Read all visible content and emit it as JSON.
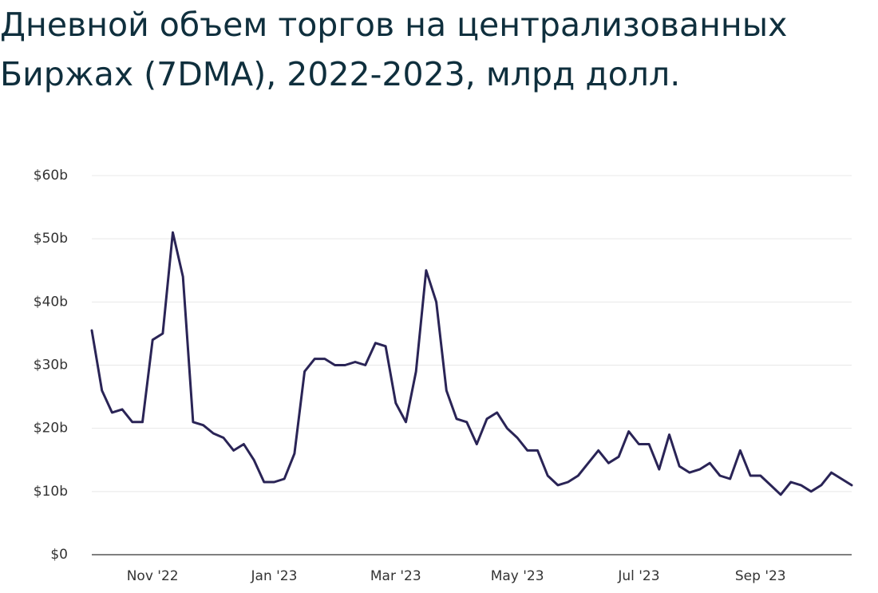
{
  "chart_data": {
    "type": "line",
    "title": "Дневной объем торгов на централизованных Биржах (7DMA), 2022-2023, млрд долл.",
    "categories": [
      null,
      null,
      null,
      null,
      null,
      null,
      "Nov '22",
      null,
      null,
      null,
      null,
      null,
      null,
      null,
      null,
      null,
      null,
      null,
      "Jan '23",
      null,
      null,
      null,
      null,
      null,
      null,
      null,
      null,
      null,
      null,
      null,
      "Mar '23",
      null,
      null,
      null,
      null,
      null,
      null,
      null,
      null,
      null,
      null,
      null,
      "May '23",
      null,
      null,
      null,
      null,
      null,
      null,
      null,
      null,
      null,
      null,
      null,
      "Jul '23",
      null,
      null,
      null,
      null,
      null,
      null,
      null,
      null,
      null,
      null,
      null,
      "Sep '23",
      null,
      null,
      null,
      null,
      null,
      null,
      null,
      null,
      null
    ],
    "values": [
      35.5,
      26,
      22.5,
      23,
      21,
      21,
      34,
      35,
      51,
      44,
      21,
      20.5,
      19.2,
      18.5,
      16.5,
      17.5,
      15,
      11.5,
      11.5,
      12,
      16,
      29,
      31,
      31,
      30,
      30,
      30.5,
      30,
      33.5,
      33,
      24,
      21,
      29,
      45,
      40,
      26,
      21.5,
      21,
      17.5,
      21.5,
      22.5,
      20,
      18.5,
      16.5,
      16.5,
      12.5,
      11,
      11.5,
      12.5,
      14.5,
      16.5,
      14.5,
      15.5,
      19.5,
      17.5,
      17.5,
      13.5,
      19,
      14,
      13,
      13.5,
      14.5,
      12.5,
      12,
      16.5,
      12.5,
      12.5,
      11,
      9.5,
      11.5,
      11,
      10,
      11,
      13,
      12,
      11
    ],
    "color": "#2a2456",
    "ylim": [
      0,
      60
    ],
    "yticks": [
      {
        "value": 0,
        "label": "$0"
      },
      {
        "value": 10,
        "label": "$10b"
      },
      {
        "value": 20,
        "label": "$20b"
      },
      {
        "value": 30,
        "label": "$30b"
      },
      {
        "value": 40,
        "label": "$40b"
      },
      {
        "value": 50,
        "label": "$50b"
      },
      {
        "value": 60,
        "label": "$60b"
      }
    ],
    "grid": true
  }
}
